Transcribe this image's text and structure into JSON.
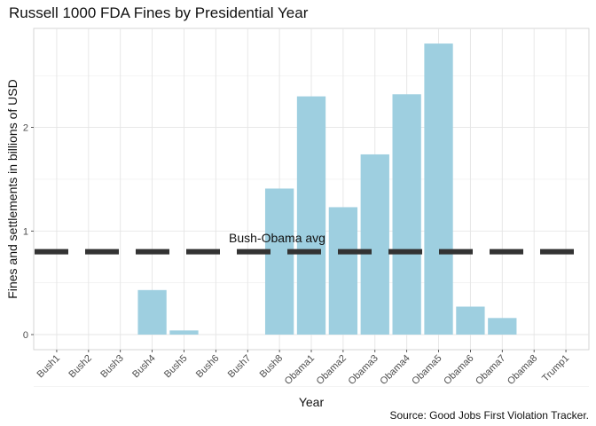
{
  "chart_data": {
    "type": "bar",
    "title": "Russell 1000 FDA Fines by Presidential Year",
    "xlabel": "Year",
    "ylabel": "Fines and settlements in billions of USD",
    "caption": "Source: Good Jobs First Violation Tracker.",
    "categories": [
      "Bush1",
      "Bush2",
      "Bush3",
      "Bush4",
      "Bush5",
      "Bush6",
      "Bush7",
      "Bush8",
      "Obama1",
      "Obama2",
      "Obama3",
      "Obama4",
      "Obama5",
      "Obama6",
      "Obama7",
      "Obama8",
      "Trump1"
    ],
    "values": [
      0,
      0,
      0,
      0.43,
      0.04,
      0,
      0,
      1.41,
      2.3,
      1.23,
      1.74,
      2.32,
      2.81,
      0.27,
      0.16,
      0,
      0
    ],
    "ylim": [
      -0.1,
      2.95
    ],
    "yticks": [
      0,
      1,
      2
    ],
    "grid": true,
    "bar_color": "#9ecfe0",
    "reference_line": {
      "value": 0.8,
      "label": "Bush-Obama avg",
      "style": "dashed",
      "color": "#333333"
    }
  }
}
